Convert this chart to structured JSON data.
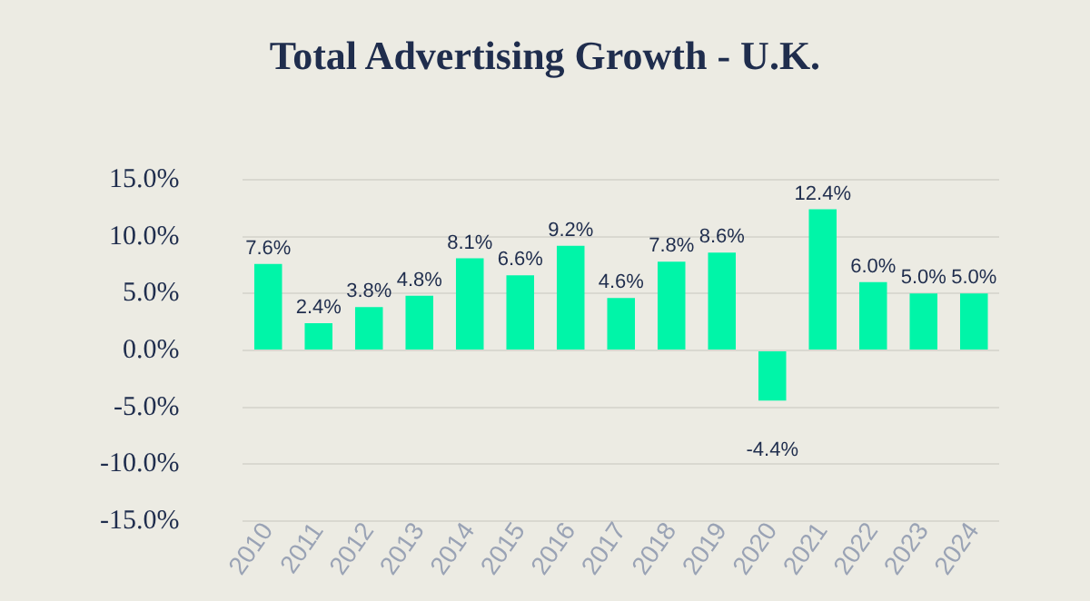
{
  "chart_data": {
    "type": "bar",
    "title": "Total Advertising Growth - U.K.",
    "categories": [
      "2010",
      "2011",
      "2012",
      "2013",
      "2014",
      "2015",
      "2016",
      "2017",
      "2018",
      "2019",
      "2020",
      "2021",
      "2022",
      "2023",
      "2024"
    ],
    "values": [
      7.6,
      2.4,
      3.8,
      4.8,
      8.1,
      6.6,
      9.2,
      4.6,
      7.8,
      8.6,
      -4.4,
      12.4,
      6.0,
      5.0,
      5.0
    ],
    "value_labels": [
      "7.6%",
      "2.4%",
      "3.8%",
      "4.8%",
      "8.1%",
      "6.6%",
      "9.2%",
      "4.6%",
      "7.8%",
      "8.6%",
      "-4.4%",
      "12.4%",
      "6.0%",
      "5.0%",
      "5.0%"
    ],
    "color": "#00f5a8",
    "ylim": [
      -15,
      15
    ],
    "yticks": [
      {
        "value": -15,
        "label": "-15.0%"
      },
      {
        "value": -10,
        "label": "-10.0%"
      },
      {
        "value": -5,
        "label": "-5.0%"
      },
      {
        "value": 0,
        "label": "0.0%"
      },
      {
        "value": 5,
        "label": "5.0%"
      },
      {
        "value": 10,
        "label": "10.0%"
      },
      {
        "value": 15,
        "label": "15.0%"
      }
    ],
    "grid": "y",
    "legend": false
  }
}
